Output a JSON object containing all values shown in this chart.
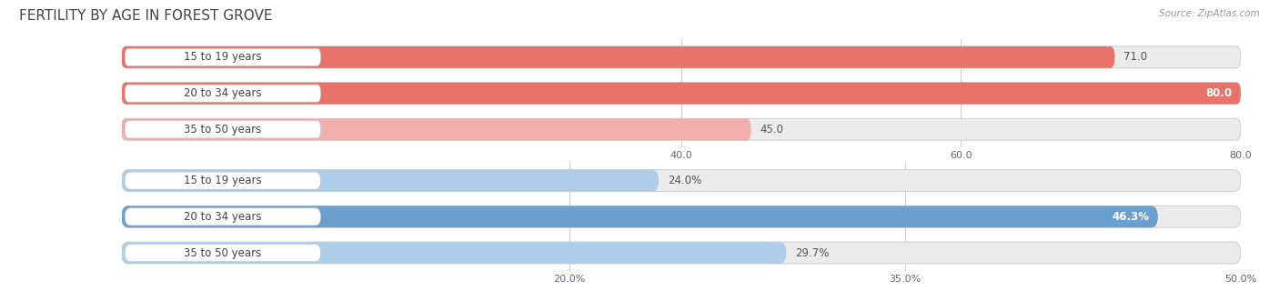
{
  "title": "FERTILITY BY AGE IN FOREST GROVE",
  "source": "Source: ZipAtlas.com",
  "top_chart": {
    "categories": [
      "15 to 19 years",
      "20 to 34 years",
      "35 to 50 years"
    ],
    "values": [
      71.0,
      80.0,
      45.0
    ],
    "value_labels": [
      "71.0",
      "80.0",
      "45.0"
    ],
    "xmin": 0.0,
    "xmax": 80.0,
    "xticks": [
      40.0,
      60.0,
      80.0
    ],
    "xtick_labels": [
      "40.0",
      "60.0",
      "80.0"
    ],
    "bar_colors": [
      "#E8736A",
      "#E8736A",
      "#F2AEAD"
    ],
    "bar_bg_color": "#EBEBEB",
    "value_inside": [
      false,
      true,
      false
    ]
  },
  "bottom_chart": {
    "categories": [
      "15 to 19 years",
      "20 to 34 years",
      "35 to 50 years"
    ],
    "values": [
      24.0,
      46.3,
      29.7
    ],
    "value_labels": [
      "24.0%",
      "46.3%",
      "29.7%"
    ],
    "xmin": 0.0,
    "xmax": 50.0,
    "xticks": [
      20.0,
      35.0,
      50.0
    ],
    "xtick_labels": [
      "20.0%",
      "35.0%",
      "50.0%"
    ],
    "bar_colors": [
      "#AECDE8",
      "#6B9FCE",
      "#AECDE8"
    ],
    "bar_bg_color": "#EBEBEB",
    "value_inside": [
      false,
      true,
      false
    ]
  },
  "label_fontsize": 8.5,
  "title_fontsize": 11,
  "source_fontsize": 7.5,
  "value_fontsize": 8.5,
  "tick_fontsize": 8
}
